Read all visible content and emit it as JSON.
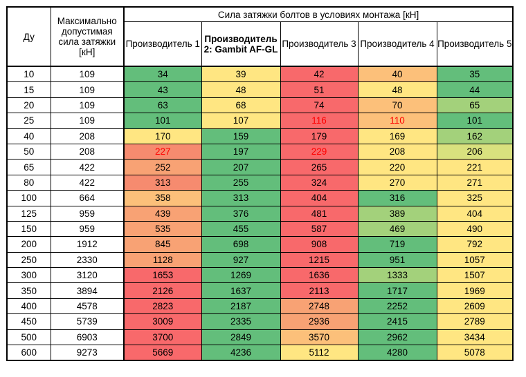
{
  "header": {
    "dn_label": "Ду",
    "max_label": "Максимально допустимая сила затяжки [кН]",
    "group_label": "Сила затяжки болтов в условиях монтажа [кН]",
    "manufacturers": [
      "Производитель 1",
      "Производитель 2: Gambit AF-GL",
      "Производитель 3",
      "Производитель 4",
      "Производитель 5"
    ]
  },
  "colors": {
    "green": "#63be7b",
    "light_green": "#a3d17b",
    "yellow_green": "#d9e17e",
    "yellow": "#ffe682",
    "light_orange": "#fcc07a",
    "orange": "#f8a274",
    "salmon": "#f68b6f",
    "red": "#f8696b",
    "highlight_text": "#ff0000"
  },
  "rows": [
    {
      "dn": "10",
      "max": "109",
      "values": [
        "34",
        "39",
        "42",
        "40",
        "35"
      ],
      "colors": [
        "green",
        "yellow",
        "red",
        "light_orange",
        "green"
      ],
      "highlight": [
        false,
        false,
        false,
        false,
        false
      ]
    },
    {
      "dn": "15",
      "max": "109",
      "values": [
        "43",
        "48",
        "51",
        "48",
        "44"
      ],
      "colors": [
        "green",
        "yellow",
        "red",
        "yellow",
        "green"
      ],
      "highlight": [
        false,
        false,
        false,
        false,
        false
      ]
    },
    {
      "dn": "20",
      "max": "109",
      "values": [
        "63",
        "68",
        "74",
        "70",
        "65"
      ],
      "colors": [
        "green",
        "yellow",
        "red",
        "light_orange",
        "light_green"
      ],
      "highlight": [
        false,
        false,
        false,
        false,
        false
      ]
    },
    {
      "dn": "25",
      "max": "109",
      "values": [
        "101",
        "107",
        "116",
        "110",
        "101"
      ],
      "colors": [
        "green",
        "yellow",
        "red",
        "light_orange",
        "green"
      ],
      "highlight": [
        false,
        false,
        true,
        true,
        false
      ]
    },
    {
      "dn": "40",
      "max": "208",
      "values": [
        "170",
        "159",
        "179",
        "169",
        "162"
      ],
      "colors": [
        "yellow",
        "green",
        "red",
        "yellow",
        "light_green"
      ],
      "highlight": [
        false,
        false,
        false,
        false,
        false
      ]
    },
    {
      "dn": "50",
      "max": "208",
      "values": [
        "227",
        "197",
        "229",
        "208",
        "206"
      ],
      "colors": [
        "salmon",
        "green",
        "red",
        "yellow",
        "yellow_green"
      ],
      "highlight": [
        true,
        false,
        true,
        false,
        false
      ]
    },
    {
      "dn": "65",
      "max": "422",
      "values": [
        "252",
        "207",
        "265",
        "220",
        "221"
      ],
      "colors": [
        "orange",
        "green",
        "red",
        "yellow",
        "yellow"
      ],
      "highlight": [
        false,
        false,
        false,
        false,
        false
      ]
    },
    {
      "dn": "80",
      "max": "422",
      "values": [
        "313",
        "255",
        "324",
        "270",
        "271"
      ],
      "colors": [
        "salmon",
        "green",
        "red",
        "yellow",
        "yellow"
      ],
      "highlight": [
        false,
        false,
        false,
        false,
        false
      ]
    },
    {
      "dn": "100",
      "max": "664",
      "values": [
        "358",
        "313",
        "404",
        "316",
        "325"
      ],
      "colors": [
        "light_orange",
        "green",
        "red",
        "green",
        "yellow"
      ],
      "highlight": [
        false,
        false,
        false,
        false,
        false
      ]
    },
    {
      "dn": "125",
      "max": "959",
      "values": [
        "439",
        "376",
        "481",
        "389",
        "404"
      ],
      "colors": [
        "orange",
        "green",
        "red",
        "light_green",
        "yellow"
      ],
      "highlight": [
        false,
        false,
        false,
        false,
        false
      ]
    },
    {
      "dn": "150",
      "max": "959",
      "values": [
        "535",
        "455",
        "587",
        "469",
        "490"
      ],
      "colors": [
        "orange",
        "green",
        "red",
        "light_green",
        "yellow"
      ],
      "highlight": [
        false,
        false,
        false,
        false,
        false
      ]
    },
    {
      "dn": "200",
      "max": "1912",
      "values": [
        "845",
        "698",
        "908",
        "719",
        "792"
      ],
      "colors": [
        "orange",
        "green",
        "red",
        "green",
        "yellow"
      ],
      "highlight": [
        false,
        false,
        false,
        false,
        false
      ]
    },
    {
      "dn": "250",
      "max": "2330",
      "values": [
        "1128",
        "927",
        "1215",
        "951",
        "1057"
      ],
      "colors": [
        "orange",
        "green",
        "red",
        "green",
        "yellow"
      ],
      "highlight": [
        false,
        false,
        false,
        false,
        false
      ]
    },
    {
      "dn": "300",
      "max": "3120",
      "values": [
        "1653",
        "1269",
        "1636",
        "1333",
        "1507"
      ],
      "colors": [
        "red",
        "green",
        "red",
        "light_green",
        "yellow"
      ],
      "highlight": [
        false,
        false,
        false,
        false,
        false
      ]
    },
    {
      "dn": "350",
      "max": "3894",
      "values": [
        "2126",
        "1637",
        "2113",
        "1717",
        "1969"
      ],
      "colors": [
        "red",
        "green",
        "red",
        "green",
        "yellow"
      ],
      "highlight": [
        false,
        false,
        false,
        false,
        false
      ]
    },
    {
      "dn": "400",
      "max": "4578",
      "values": [
        "2823",
        "2187",
        "2748",
        "2252",
        "2609"
      ],
      "colors": [
        "red",
        "green",
        "orange",
        "green",
        "yellow"
      ],
      "highlight": [
        false,
        false,
        false,
        false,
        false
      ]
    },
    {
      "dn": "450",
      "max": "5739",
      "values": [
        "3009",
        "2335",
        "2936",
        "2415",
        "2789"
      ],
      "colors": [
        "red",
        "green",
        "orange",
        "green",
        "yellow"
      ],
      "highlight": [
        false,
        false,
        false,
        false,
        false
      ]
    },
    {
      "dn": "500",
      "max": "6903",
      "values": [
        "3700",
        "2849",
        "3570",
        "2962",
        "3434"
      ],
      "colors": [
        "red",
        "green",
        "light_orange",
        "green",
        "yellow"
      ],
      "highlight": [
        false,
        false,
        false,
        false,
        false
      ]
    },
    {
      "dn": "600",
      "max": "9273",
      "values": [
        "5669",
        "4236",
        "5112",
        "4280",
        "5078"
      ],
      "colors": [
        "red",
        "green",
        "yellow",
        "green",
        "yellow"
      ],
      "highlight": [
        false,
        false,
        false,
        false,
        false
      ]
    }
  ]
}
